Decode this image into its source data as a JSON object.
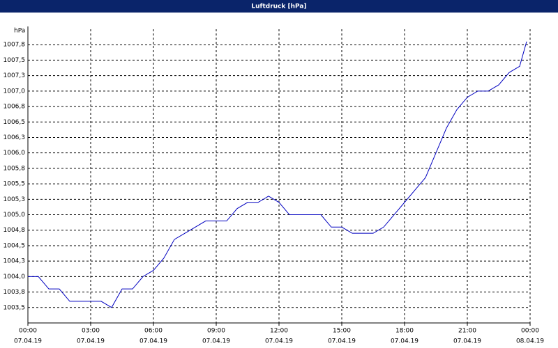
{
  "chart_data": {
    "type": "line",
    "title": "Luftdruck [hPa]",
    "y_label": "hPa",
    "x": [
      "07.04.19 00:00",
      "07.04.19 00:30",
      "07.04.19 01:00",
      "07.04.19 01:30",
      "07.04.19 02:00",
      "07.04.19 02:30",
      "07.04.19 03:00",
      "07.04.19 03:30",
      "07.04.19 04:00",
      "07.04.19 04:30",
      "07.04.19 05:00",
      "07.04.19 05:30",
      "07.04.19 06:00",
      "07.04.19 06:30",
      "07.04.19 07:00",
      "07.04.19 07:30",
      "07.04.19 08:00",
      "07.04.19 08:30",
      "07.04.19 09:00",
      "07.04.19 09:30",
      "07.04.19 10:00",
      "07.04.19 10:30",
      "07.04.19 11:00",
      "07.04.19 11:30",
      "07.04.19 12:00",
      "07.04.19 12:30",
      "07.04.19 13:00",
      "07.04.19 13:30",
      "07.04.19 14:00",
      "07.04.19 14:30",
      "07.04.19 15:00",
      "07.04.19 15:30",
      "07.04.19 16:00",
      "07.04.19 16:30",
      "07.04.19 17:00",
      "07.04.19 17:30",
      "07.04.19 18:00",
      "07.04.19 18:30",
      "07.04.19 19:00",
      "07.04.19 19:30",
      "07.04.19 20:00",
      "07.04.19 20:30",
      "07.04.19 21:00",
      "07.04.19 21:30",
      "07.04.19 22:00",
      "07.04.19 22:30",
      "07.04.19 23:00",
      "07.04.19 23:30",
      "07.04.19 23:50"
    ],
    "series": [
      {
        "color": "#0000c0",
        "values": [
          1004.0,
          1004.0,
          1003.8,
          1003.8,
          1003.6,
          1003.6,
          1003.6,
          1003.6,
          1003.5,
          1003.8,
          1003.8,
          1004.0,
          1004.1,
          1004.3,
          1004.6,
          1004.7,
          1004.8,
          1004.9,
          1004.9,
          1004.9,
          1005.1,
          1005.2,
          1005.2,
          1005.3,
          1005.2,
          1005.0,
          1005.0,
          1005.0,
          1005.0,
          1004.8,
          1004.8,
          1004.7,
          1004.7,
          1004.7,
          1004.8,
          1005.0,
          1005.2,
          1005.4,
          1005.6,
          1006.0,
          1006.4,
          1006.7,
          1006.9,
          1007.0,
          1007.0,
          1007.1,
          1007.3,
          1007.4,
          1007.8
        ]
      }
    ],
    "xlim": [
      "07.04.19 00:00",
      "08.04.19 00:00"
    ],
    "xticks": [
      {
        "time": "00:00",
        "date": "07.04.19"
      },
      {
        "time": "03:00",
        "date": "07.04.19"
      },
      {
        "time": "06:00",
        "date": "07.04.19"
      },
      {
        "time": "09:00",
        "date": "07.04.19"
      },
      {
        "time": "12:00",
        "date": "07.04.19"
      },
      {
        "time": "15:00",
        "date": "07.04.19"
      },
      {
        "time": "18:00",
        "date": "07.04.19"
      },
      {
        "time": "21:00",
        "date": "07.04.19"
      },
      {
        "time": "00:00",
        "date": "08.04.19"
      }
    ],
    "ylim": [
      1003.25,
      1008.0
    ],
    "yticks": [
      {
        "value": 1003.5,
        "label": "1003,5"
      },
      {
        "value": 1003.75,
        "label": "1003,8"
      },
      {
        "value": 1004.0,
        "label": "1004,0"
      },
      {
        "value": 1004.25,
        "label": "1004,3"
      },
      {
        "value": 1004.5,
        "label": "1004,5"
      },
      {
        "value": 1004.75,
        "label": "1004,8"
      },
      {
        "value": 1005.0,
        "label": "1005,0"
      },
      {
        "value": 1005.25,
        "label": "1005,3"
      },
      {
        "value": 1005.5,
        "label": "1005,5"
      },
      {
        "value": 1005.75,
        "label": "1005,8"
      },
      {
        "value": 1006.0,
        "label": "1006,0"
      },
      {
        "value": 1006.25,
        "label": "1006,3"
      },
      {
        "value": 1006.5,
        "label": "1006,5"
      },
      {
        "value": 1006.75,
        "label": "1006,8"
      },
      {
        "value": 1007.0,
        "label": "1007,0"
      },
      {
        "value": 1007.25,
        "label": "1007,3"
      },
      {
        "value": 1007.5,
        "label": "1007,5"
      },
      {
        "value": 1007.75,
        "label": "1007,8"
      }
    ],
    "grid": true
  }
}
